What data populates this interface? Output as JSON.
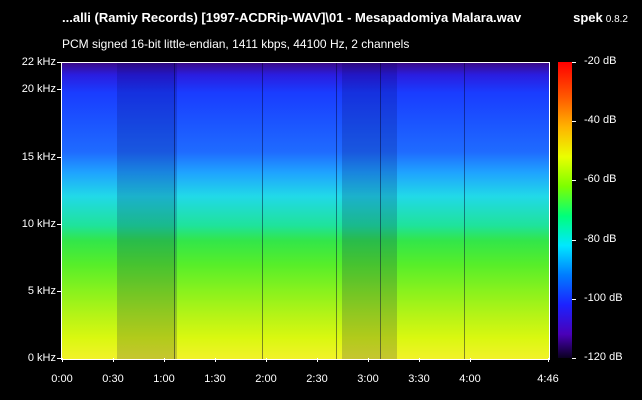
{
  "window": {
    "file_title": "...alli (Ramiy Records) [1997-ACDRip-WAV]\\01 - Mesapadomiya Malara.wav",
    "app_name": "spek",
    "app_version": "0.8.2",
    "audio_info": "PCM signed 16-bit little-endian, 1411 kbps, 44100 Hz, 2 channels"
  },
  "frequency_axis": {
    "labels": [
      "22 kHz",
      "20 kHz",
      "15 kHz",
      "10 kHz",
      "5 kHz",
      "0 kHz"
    ]
  },
  "time_axis": {
    "labels": [
      "0:00",
      "0:30",
      "1:00",
      "1:30",
      "2:00",
      "2:30",
      "3:00",
      "3:30",
      "4:00",
      "4:46"
    ]
  },
  "db_scale": {
    "labels": [
      "-20 dB",
      "-40 dB",
      "-60 dB",
      "-80 dB",
      "-100 dB",
      "-120 dB"
    ]
  }
}
